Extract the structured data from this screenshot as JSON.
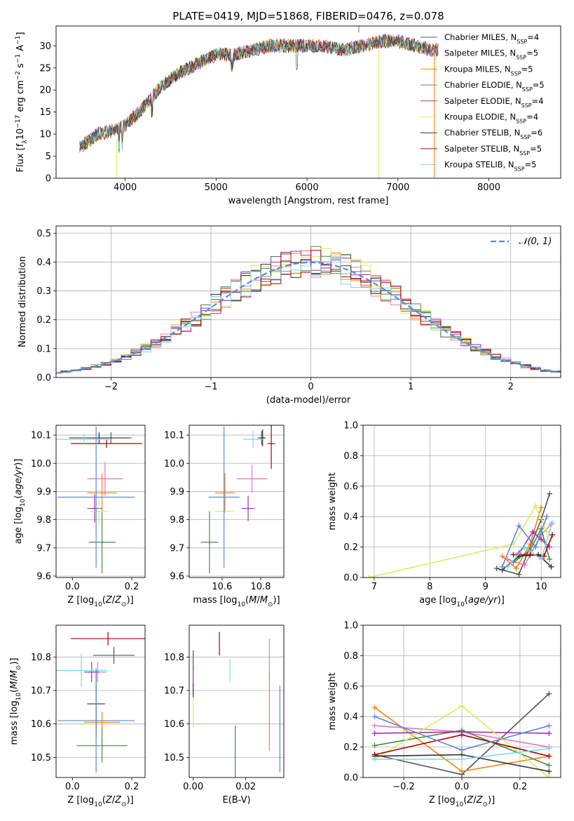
{
  "figure": {
    "title": "PLATE=0419, MJD=51868, FIBERID=0476, z=0.078"
  },
  "colors": {
    "s0": "#555555",
    "s1": "#e377c2",
    "s2": "#ff7f0e",
    "s3": "#4a8a4a",
    "s4": "#9b30b0",
    "s5": "#d4ee5e",
    "s6": "#333333",
    "s7": "#aa0000",
    "s8": "#7fd8e0",
    "gauss": "#5a8ad8",
    "grid": "#b0b0b0"
  },
  "legend1": [
    {
      "pre": "Chabrier MILES, N",
      "sub": "SSP",
      "post": "=4"
    },
    {
      "pre": "Salpeter MILES, N",
      "sub": "SSP",
      "post": "=5"
    },
    {
      "pre": "Kroupa MILES, N",
      "sub": "SSP",
      "post": "=5"
    },
    {
      "pre": "Chabrier ELODIE, N",
      "sub": "SSP",
      "post": "=5"
    },
    {
      "pre": "Salpeter ELODIE, N",
      "sub": "SSP",
      "post": "=4"
    },
    {
      "pre": "Kroupa ELODIE, N",
      "sub": "SSP",
      "post": "=4"
    },
    {
      "pre": "Chabrier STELIB, N",
      "sub": "SSP",
      "post": "=6"
    },
    {
      "pre": "Salpeter STELIB, N",
      "sub": "SSP",
      "post": "=5"
    },
    {
      "pre": "Kroupa STELIB, N",
      "sub": "SSP",
      "post": "=5"
    }
  ],
  "legend2": "𝒩(0, 1)",
  "chart_data": [
    {
      "id": "spectrum",
      "type": "line",
      "xlabel": "wavelength [Angstrom, rest frame]",
      "ylabel_pre": "Flux [f",
      "ylabel_sub1": "λ",
      "ylabel_mid": "10",
      "ylabel_sup1": "−17",
      "ylabel_mid2": " erg cm",
      "ylabel_sup2": "−2",
      "ylabel_mid3": " s",
      "ylabel_sup3": "−1",
      "ylabel_mid4": " A",
      "ylabel_sup4": "−1",
      "ylabel_post": "]",
      "xlim": [
        3240,
        8790
      ],
      "ylim": [
        0,
        34.5
      ],
      "xticks": [
        4000,
        5000,
        6000,
        7000,
        8000
      ],
      "yticks": [
        0,
        5,
        10,
        15,
        20,
        25,
        30
      ],
      "x": [
        3500,
        3700,
        3900,
        4000,
        4200,
        4400,
        4600,
        4800,
        5000,
        5200,
        5400,
        5600,
        5800,
        6000,
        6200,
        6400,
        6600,
        6800,
        7000,
        7200,
        7400
      ],
      "y": [
        7,
        10,
        11,
        12,
        16,
        21,
        24,
        26,
        28,
        28,
        29,
        30,
        30,
        30,
        30,
        29,
        30,
        31,
        31,
        30,
        29
      ]
    },
    {
      "id": "residuals",
      "type": "histogram",
      "xlabel": "(data-model)/error",
      "ylabel": "Normed distribution",
      "xlim": [
        -2.55,
        2.5
      ],
      "ylim": [
        0,
        0.525
      ],
      "xticks": [
        -2,
        -1,
        0,
        1,
        2
      ],
      "xticklabels": [
        "−2",
        "−1",
        "0",
        "1",
        "2"
      ],
      "yticks": [
        0,
        0.1,
        0.2,
        0.3,
        0.4,
        0.5
      ],
      "yticklabels": [
        "0.0",
        "0.1",
        "0.2",
        "0.3",
        "0.4",
        "0.5"
      ],
      "bin_width": 0.1,
      "reference_curve": "gaussian mean 0 sigma 1"
    },
    {
      "id": "age_vs_Z",
      "type": "scatter",
      "xlabel": "Z [log10(Z/Z⊙)]",
      "ylabel": "age [log10(age/yr)]",
      "xlim": [
        -0.055,
        0.245
      ],
      "ylim": [
        9.595,
        10.135
      ],
      "xticks": [
        0.0,
        0.2
      ],
      "xticklabels": [
        "0.0",
        "0.2"
      ],
      "yticks": [
        9.6,
        9.7,
        9.8,
        9.9,
        10.0,
        10.1
      ],
      "yticklabels": [
        "9.6",
        "9.7",
        "9.8",
        "9.9",
        "10.0",
        "10.1"
      ],
      "points": [
        {
          "s": 0,
          "x": 0.13,
          "xe": 0.07,
          "y": 10.09,
          "ye": 0.02
        },
        {
          "s": 1,
          "x": 0.11,
          "xe": 0.06,
          "y": 9.945,
          "ye": 0.06
        },
        {
          "s": 2,
          "x": 0.1,
          "xe": 0.05,
          "y": 9.895,
          "ye": 0.07
        },
        {
          "s": 3,
          "x": 0.1,
          "xe": 0.045,
          "y": 9.72,
          "ye": 0.11
        },
        {
          "s": 4,
          "x": 0.075,
          "xe": 0.025,
          "y": 9.84,
          "ye": 0.05
        },
        {
          "s": 5,
          "x": 0.09,
          "xe": 0.03,
          "y": 9.83,
          "ye": 0.05
        },
        {
          "s": 6,
          "x": 0.09,
          "xe": 0.1,
          "y": 10.09,
          "ye": 0.02
        },
        {
          "s": 7,
          "x": 0.115,
          "xe": 0.12,
          "y": 10.07,
          "ye": 0.015
        },
        {
          "s": 8,
          "x": 0.04,
          "xe": 0.095,
          "y": 10.085,
          "ye": 0.02
        },
        {
          "s": 9,
          "x": 0.08,
          "xe": 0.13,
          "y": 9.88,
          "ye": 0.25
        }
      ]
    },
    {
      "id": "age_vs_mass",
      "type": "scatter",
      "xlabel": "mass [log10(M/M⊙)]",
      "ylabel": "",
      "xlim": [
        10.43,
        10.92
      ],
      "ylim": [
        9.595,
        10.135
      ],
      "xticks": [
        10.6,
        10.8
      ],
      "xticklabels": [
        "10.6",
        "10.8"
      ],
      "yticks": [
        9.6,
        9.7,
        9.8,
        9.9,
        10.0,
        10.1
      ],
      "yticklabels": [
        "9.6",
        "9.7",
        "9.8",
        "9.9",
        "10.0",
        "10.1"
      ],
      "points": [
        {
          "s": 0,
          "x": 10.805,
          "xe": 0.02,
          "y": 10.09,
          "ye": 0.025
        },
        {
          "s": 1,
          "x": 10.755,
          "xe": 0.08,
          "y": 9.945,
          "ye": 0.05
        },
        {
          "s": 2,
          "x": 10.615,
          "xe": 0.05,
          "y": 9.895,
          "ye": 0.07
        },
        {
          "s": 3,
          "x": 10.535,
          "xe": 0.045,
          "y": 9.72,
          "ye": 0.11
        },
        {
          "s": 4,
          "x": 10.735,
          "xe": 0.035,
          "y": 9.84,
          "ye": 0.045
        },
        {
          "s": 5,
          "x": 10.61,
          "xe": 0.05,
          "y": 9.83,
          "ye": 0.045
        },
        {
          "s": 6,
          "x": 10.81,
          "xe": 0.015,
          "y": 10.09,
          "ye": 0.03
        },
        {
          "s": 7,
          "x": 10.855,
          "xe": 0.02,
          "y": 10.07,
          "ye": 0.09
        },
        {
          "s": 8,
          "x": 10.76,
          "xe": 0.05,
          "y": 10.085,
          "ye": 0.03
        },
        {
          "s": 9,
          "x": 10.61,
          "xe": 0.08,
          "y": 9.88,
          "ye": 0.25
        }
      ]
    },
    {
      "id": "mw_vs_age",
      "type": "line",
      "xlabel": "age [log10(age/yr)]",
      "ylabel": "mass weight",
      "xlim": [
        6.8,
        10.35
      ],
      "ylim": [
        0,
        1.0
      ],
      "xticks": [
        7,
        8,
        9,
        10
      ],
      "xticklabels": [
        "7",
        "8",
        "9",
        "10"
      ],
      "yticks": [
        0,
        0.2,
        0.4,
        0.6,
        0.8,
        1.0
      ],
      "yticklabels": [
        "0.0",
        "0.2",
        "0.4",
        "0.6",
        "0.8",
        "1.0"
      ],
      "series": [
        {
          "s": 0,
          "x": [
            9.2,
            9.6,
            10.0,
            10.15
          ],
          "y": [
            0.06,
            0.02,
            0.38,
            0.55
          ]
        },
        {
          "s": 1,
          "x": [
            9.4,
            9.7,
            10.0,
            10.18
          ],
          "y": [
            0.12,
            0.08,
            0.28,
            0.35
          ]
        },
        {
          "s": 2,
          "x": [
            9.3,
            9.55,
            9.8,
            10.0
          ],
          "y": [
            0.14,
            0.06,
            0.22,
            0.46
          ]
        },
        {
          "s": 3,
          "x": [
            9.5,
            9.8,
            10.0,
            10.15
          ],
          "y": [
            0.1,
            0.18,
            0.32,
            0.12
          ]
        },
        {
          "s": 4,
          "x": [
            9.6,
            9.85,
            10.0,
            10.15
          ],
          "y": [
            0.16,
            0.3,
            0.25,
            0.2
          ]
        },
        {
          "s": 5,
          "x": [
            6.9,
            9.5,
            9.9,
            10.1
          ],
          "y": [
            0.0,
            0.22,
            0.47,
            0.3
          ]
        },
        {
          "s": 6,
          "x": [
            9.3,
            9.6,
            9.95,
            10.18
          ],
          "y": [
            0.05,
            0.14,
            0.15,
            0.07
          ]
        },
        {
          "s": 7,
          "x": [
            9.5,
            9.8,
            10.05,
            10.2
          ],
          "y": [
            0.15,
            0.15,
            0.14,
            0.28
          ]
        },
        {
          "s": 8,
          "x": [
            9.4,
            9.7,
            10.0,
            10.2
          ],
          "y": [
            0.07,
            0.2,
            0.12,
            0.36
          ]
        },
        {
          "s": 9,
          "x": [
            9.3,
            9.6,
            9.9,
            10.1
          ],
          "y": [
            0.07,
            0.34,
            0.2,
            0.4
          ]
        }
      ]
    },
    {
      "id": "mass_vs_Z",
      "type": "scatter",
      "xlabel": "Z [log10(Z/Z⊙)]",
      "ylabel": "mass [log10(M/M⊙)]",
      "xlim": [
        -0.055,
        0.245
      ],
      "ylim": [
        10.44,
        10.895
      ],
      "xticks": [
        0.0,
        0.2
      ],
      "xticklabels": [
        "0.0",
        "0.2"
      ],
      "yticks": [
        10.5,
        10.6,
        10.7,
        10.8
      ],
      "yticklabels": [
        "10.5",
        "10.6",
        "10.7",
        "10.8"
      ],
      "points": [
        {
          "s": 0,
          "x": 0.14,
          "xe": 0.07,
          "y": 10.805,
          "ye": 0.025
        },
        {
          "s": 1,
          "x": 0.085,
          "xe": 0.03,
          "y": 10.755,
          "ye": 0.03
        },
        {
          "s": 2,
          "x": 0.1,
          "xe": 0.06,
          "y": 10.605,
          "ye": 0.03
        },
        {
          "s": 3,
          "x": 0.1,
          "xe": 0.085,
          "y": 10.535,
          "ye": 0.05
        },
        {
          "s": 4,
          "x": 0.065,
          "xe": 0.025,
          "y": 10.755,
          "ye": 0.03
        },
        {
          "s": 5,
          "x": 0.08,
          "xe": 0.07,
          "y": 10.61,
          "ye": 0.03
        },
        {
          "s": 6,
          "x": 0.08,
          "xe": 0.03,
          "y": 10.66,
          "ye": 0.1
        },
        {
          "s": 7,
          "x": 0.12,
          "xe": 0.125,
          "y": 10.855,
          "ye": 0.02
        },
        {
          "s": 8,
          "x": 0.03,
          "xe": 0.09,
          "y": 10.76,
          "ye": 0.05
        },
        {
          "s": 9,
          "x": 0.08,
          "xe": 0.13,
          "y": 10.61,
          "ye": 0.155
        }
      ]
    },
    {
      "id": "mass_vs_EBV",
      "type": "scatter",
      "xlabel": "E(B-V)",
      "ylabel": "",
      "xlim": [
        -0.0015,
        0.0345
      ],
      "ylim": [
        10.44,
        10.895
      ],
      "xticks": [
        0.0,
        0.02
      ],
      "xticklabels": [
        "0.00",
        "0.02"
      ],
      "yticks": [
        10.5,
        10.6,
        10.7,
        10.8
      ],
      "yticklabels": [
        "10.5",
        "10.6",
        "10.7",
        "10.8"
      ],
      "points": [
        {
          "s": 0,
          "x": 0.0,
          "xe": 0,
          "y": 10.79,
          "ye": 0.03
        },
        {
          "s": 1,
          "x": 0.029,
          "xe": 0,
          "y": 10.8,
          "ye": 0.055
        },
        {
          "s": 2,
          "x": 0.029,
          "xe": 0,
          "y": 10.64,
          "ye": 0.12
        },
        {
          "s": 3,
          "x": 0.016,
          "xe": 0,
          "y": 10.515,
          "ye": 0.08
        },
        {
          "s": 4,
          "x": 0.0,
          "xe": 0,
          "y": 10.745,
          "ye": 0.03
        },
        {
          "s": 5,
          "x": 0.0,
          "xe": 0,
          "y": 10.65,
          "ye": 0.06
        },
        {
          "s": 6,
          "x": 0.0,
          "xe": 0,
          "y": 10.7,
          "ye": 0.02
        },
        {
          "s": 7,
          "x": 0.01,
          "xe": 0,
          "y": 10.84,
          "ye": 0.035
        },
        {
          "s": 8,
          "x": 0.014,
          "xe": 0,
          "y": 10.76,
          "ye": 0.035
        },
        {
          "s": 9,
          "x": 0.033,
          "xe": 0,
          "y": 10.585,
          "ye": 0.13
        }
      ]
    },
    {
      "id": "mw_vs_Z",
      "type": "line",
      "xlabel": "Z [log10(Z/Z⊙)]",
      "ylabel": "mass weight",
      "xlim": [
        -0.34,
        0.34
      ],
      "ylim": [
        0,
        1.0
      ],
      "xticks": [
        -0.2,
        0.0,
        0.2
      ],
      "xticklabels": [
        "−0.2",
        "0.0",
        "0.2"
      ],
      "yticks": [
        0,
        0.2,
        0.4,
        0.6,
        0.8,
        1.0
      ],
      "yticklabels": [
        "0.0",
        "0.2",
        "0.4",
        "0.6",
        "0.8",
        "1.0"
      ],
      "series": [
        {
          "s": 0,
          "x": [
            -0.3,
            0.0,
            0.3
          ],
          "y": [
            0.15,
            0.02,
            0.55
          ]
        },
        {
          "s": 1,
          "x": [
            -0.3,
            0.0,
            0.3
          ],
          "y": [
            0.34,
            0.3,
            0.2
          ]
        },
        {
          "s": 2,
          "x": [
            -0.3,
            0.0,
            0.3
          ],
          "y": [
            0.46,
            0.04,
            0.14
          ]
        },
        {
          "s": 3,
          "x": [
            -0.3,
            0.0,
            0.3
          ],
          "y": [
            0.21,
            0.31,
            0.08
          ]
        },
        {
          "s": 4,
          "x": [
            -0.3,
            0.0,
            0.3
          ],
          "y": [
            0.29,
            0.3,
            0.29
          ]
        },
        {
          "s": 5,
          "x": [
            -0.3,
            0.0,
            0.3
          ],
          "y": [
            0.12,
            0.47,
            0.0
          ]
        },
        {
          "s": 6,
          "x": [
            -0.3,
            0.0,
            0.3
          ],
          "y": [
            0.14,
            0.15,
            0.04
          ]
        },
        {
          "s": 7,
          "x": [
            -0.3,
            0.0,
            0.3
          ],
          "y": [
            0.15,
            0.28,
            0.14
          ]
        },
        {
          "s": 8,
          "x": [
            -0.3,
            0.0,
            0.3
          ],
          "y": [
            0.12,
            0.12,
            0.19
          ]
        },
        {
          "s": 9,
          "x": [
            -0.3,
            0.0,
            0.3
          ],
          "y": [
            0.4,
            0.18,
            0.34
          ]
        }
      ]
    }
  ]
}
